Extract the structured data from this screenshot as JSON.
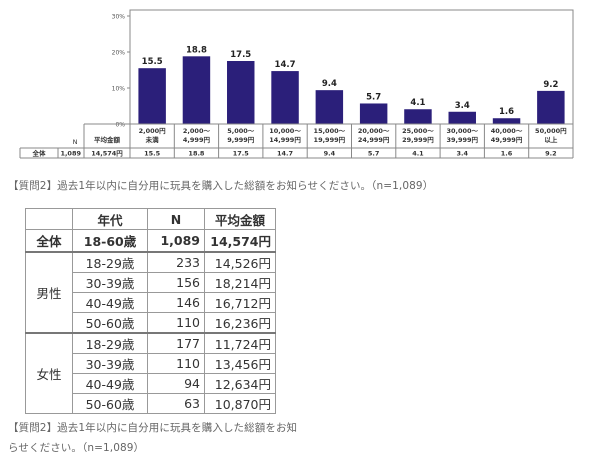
{
  "chart_data": [
    {
      "type": "bar",
      "categories": [
        [
          "2,000円",
          "未満"
        ],
        [
          "2,000～",
          "4,999円"
        ],
        [
          "5,000～",
          "9,999円"
        ],
        [
          "10,000～",
          "14,999円"
        ],
        [
          "15,000～",
          "19,999円"
        ],
        [
          "20,000～",
          "24,999円"
        ],
        [
          "25,000～",
          "29,999円"
        ],
        [
          "30,000～",
          "39,999円"
        ],
        [
          "40,000～",
          "49,999円"
        ],
        [
          "50,000円",
          "以上"
        ]
      ],
      "values": [
        15.5,
        18.8,
        17.5,
        14.7,
        9.4,
        5.7,
        4.1,
        3.4,
        1.6,
        9.2
      ],
      "data_labels": [
        "15.5",
        "18.8",
        "17.5",
        "14.7",
        "9.4",
        "5.7",
        "4.1",
        "3.4",
        "1.6",
        "9.2"
      ],
      "y_ticks": [
        "0%",
        "10%",
        "20%",
        "30%"
      ],
      "ylim": [
        0,
        30
      ],
      "bar_color": "#2b1f7a",
      "grid": false,
      "table": {
        "header_n": "N",
        "header_avg": "平均金額",
        "row_label": "全体",
        "row_n": "1,089",
        "row_avg": "14,574円",
        "row_values": [
          "15.5",
          "18.8",
          "17.5",
          "14.7",
          "9.4",
          "5.7",
          "4.1",
          "3.4",
          "1.6",
          "9.2"
        ]
      }
    },
    {
      "type": "table",
      "headers": [
        "年代",
        "N",
        "平均金額"
      ],
      "total": {
        "label": "全体",
        "age": "18-60歳",
        "n": "1,089",
        "avg": "14,574円"
      },
      "groups": [
        {
          "label": "男性",
          "rows": [
            {
              "age": "18-29歳",
              "n": "233",
              "avg": "14,526円"
            },
            {
              "age": "30-39歳",
              "n": "156",
              "avg": "18,214円"
            },
            {
              "age": "40-49歳",
              "n": "146",
              "avg": "16,712円"
            },
            {
              "age": "50-60歳",
              "n": "110",
              "avg": "16,236円"
            }
          ]
        },
        {
          "label": "女性",
          "rows": [
            {
              "age": "18-29歳",
              "n": "177",
              "avg": "11,724円"
            },
            {
              "age": "30-39歳",
              "n": "110",
              "avg": "13,456円"
            },
            {
              "age": "40-49歳",
              "n": "94",
              "avg": "12,634円"
            },
            {
              "age": "50-60歳",
              "n": "63",
              "avg": "10,870円"
            }
          ]
        }
      ]
    }
  ],
  "captions": {
    "chart": "【質問2】過去1年以内に自分用に玩具を購入した総額をお知らせください。（n=1,089）",
    "table_line1": "【質問2】過去1年以内に自分用に玩具を購入した総額をお知",
    "table_line2": "らせください。（n=1,089）"
  }
}
